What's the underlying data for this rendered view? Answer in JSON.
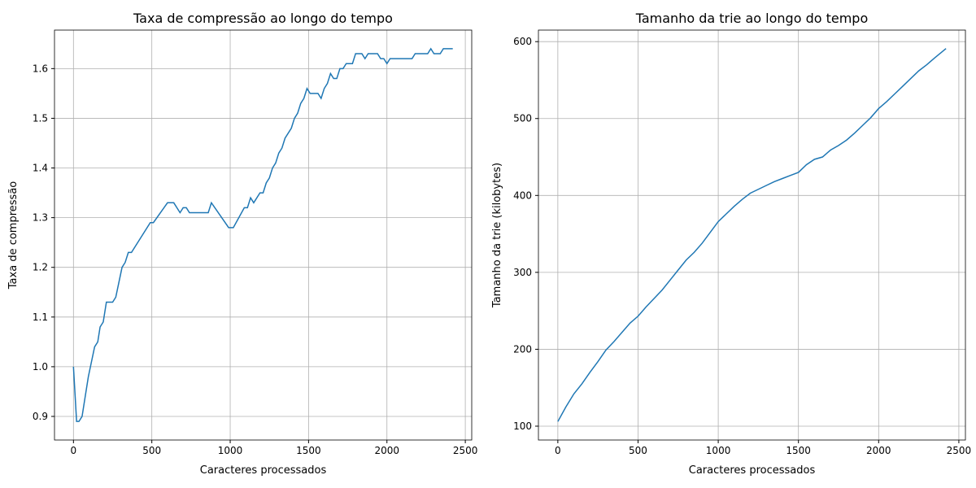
{
  "chart_data": [
    {
      "type": "line",
      "title": "Taxa de compressão ao longo do tempo",
      "xlabel": "Caracteres processados",
      "ylabel": "Taxa de compressão",
      "x": [
        0,
        20,
        35,
        55,
        75,
        95,
        115,
        135,
        155,
        170,
        190,
        210,
        250,
        270,
        290,
        310,
        330,
        350,
        370,
        490,
        510,
        600,
        640,
        680,
        700,
        720,
        740,
        860,
        880,
        990,
        1020,
        1090,
        1110,
        1130,
        1150,
        1190,
        1210,
        1230,
        1250,
        1270,
        1290,
        1310,
        1330,
        1350,
        1390,
        1410,
        1430,
        1450,
        1470,
        1490,
        1510,
        1560,
        1580,
        1600,
        1620,
        1640,
        1660,
        1680,
        1700,
        1720,
        1740,
        1780,
        1800,
        1840,
        1860,
        1880,
        1940,
        1960,
        1980,
        2000,
        2020,
        2160,
        2180,
        2260,
        2280,
        2300,
        2340,
        2360,
        2420
      ],
      "values": [
        1.0,
        0.89,
        0.89,
        0.9,
        0.94,
        0.98,
        1.01,
        1.04,
        1.05,
        1.08,
        1.09,
        1.13,
        1.13,
        1.14,
        1.17,
        1.2,
        1.21,
        1.23,
        1.23,
        1.29,
        1.29,
        1.33,
        1.33,
        1.31,
        1.32,
        1.32,
        1.31,
        1.31,
        1.33,
        1.28,
        1.28,
        1.32,
        1.32,
        1.34,
        1.33,
        1.35,
        1.35,
        1.37,
        1.38,
        1.4,
        1.41,
        1.43,
        1.44,
        1.46,
        1.48,
        1.5,
        1.51,
        1.53,
        1.54,
        1.56,
        1.55,
        1.55,
        1.54,
        1.56,
        1.57,
        1.59,
        1.58,
        1.58,
        1.6,
        1.6,
        1.61,
        1.61,
        1.63,
        1.63,
        1.62,
        1.63,
        1.63,
        1.62,
        1.62,
        1.61,
        1.62,
        1.62,
        1.63,
        1.63,
        1.64,
        1.63,
        1.63,
        1.64,
        1.64
      ],
      "color": "#1f77b4",
      "grid": true,
      "xlim": [
        -121,
        2541
      ],
      "xticks": [
        0,
        500,
        1000,
        1500,
        2000,
        2500
      ],
      "ylim": [
        0.8525,
        1.6775
      ],
      "yticks": [
        0.9,
        {
          "value": 1,
          "label": "1.0"
        },
        1.1,
        1.2,
        1.3,
        1.4,
        1.5,
        1.6
      ]
    },
    {
      "type": "line",
      "title": "Tamanho da trie ao longo do tempo",
      "xlabel": "Caracteres processados",
      "ylabel": "Tamanho da trie (kilobytes)",
      "x": [
        0,
        50,
        100,
        150,
        200,
        250,
        300,
        350,
        400,
        450,
        500,
        550,
        600,
        650,
        700,
        750,
        800,
        850,
        900,
        950,
        1000,
        1050,
        1100,
        1150,
        1200,
        1250,
        1300,
        1350,
        1400,
        1450,
        1500,
        1550,
        1600,
        1650,
        1700,
        1750,
        1800,
        1850,
        1900,
        1950,
        2000,
        2050,
        2100,
        2150,
        2200,
        2250,
        2300,
        2350,
        2420
      ],
      "values": [
        106,
        125,
        142,
        155,
        170,
        184,
        199,
        210,
        222,
        234,
        243,
        255,
        266,
        277,
        290,
        303,
        316,
        326,
        338,
        352,
        366,
        376,
        386,
        395,
        403,
        408,
        413,
        418,
        422,
        426,
        430,
        440,
        447,
        450,
        459,
        465,
        472,
        481,
        491,
        501,
        513,
        522,
        532,
        542,
        552,
        562,
        570,
        579,
        591
      ],
      "color": "#1f77b4",
      "grid": true,
      "xlim": [
        -121,
        2541
      ],
      "xticks": [
        0,
        500,
        1000,
        1500,
        2000,
        2500
      ],
      "ylim": [
        82,
        615
      ],
      "yticks": [
        100,
        200,
        300,
        400,
        500,
        600
      ]
    }
  ]
}
